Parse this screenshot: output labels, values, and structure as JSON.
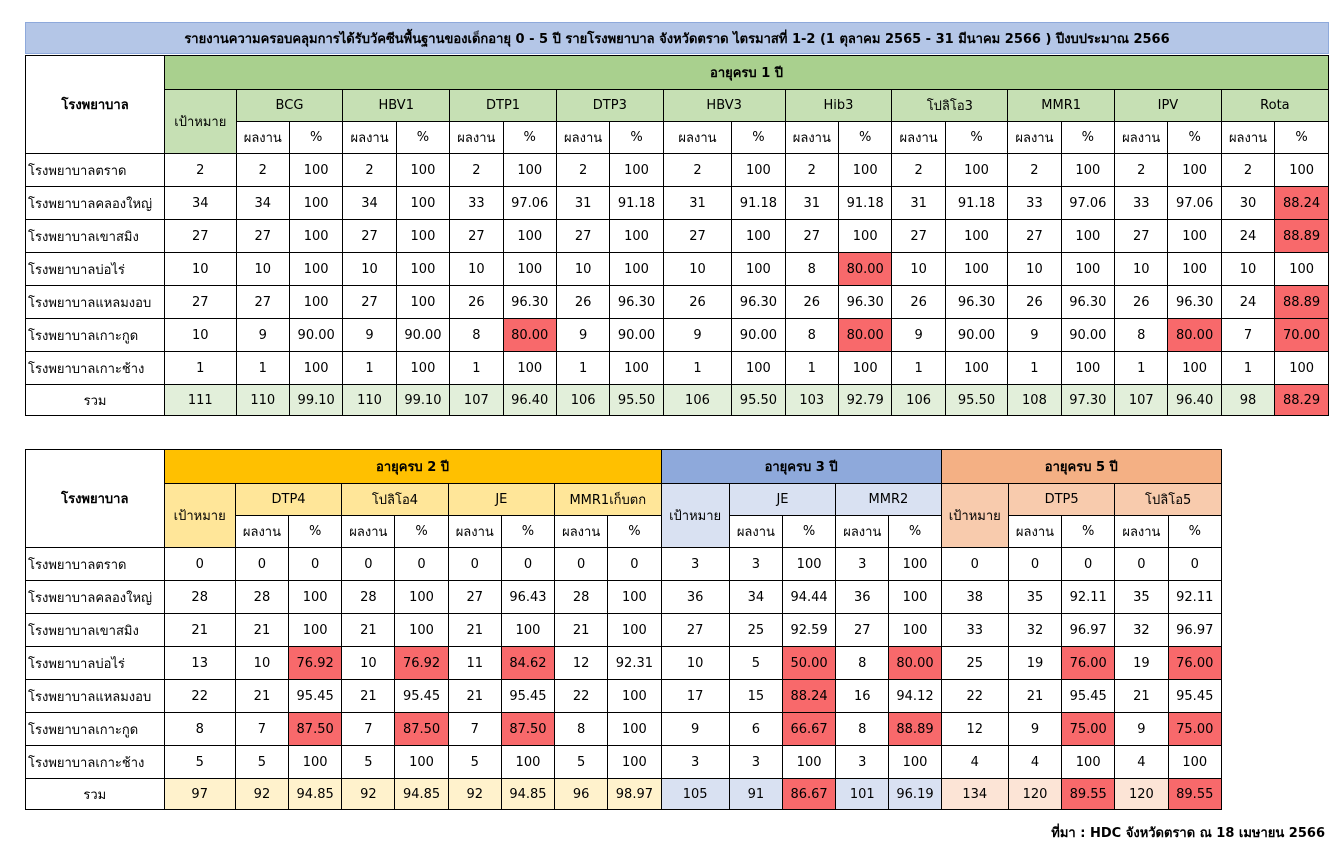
{
  "title": "รายงานความครอบคลุมการได้รับวัคซีนพื้นฐานของเด็กอายุ 0 - 5 ปี รายโรงพยาบาล จังหวัดตราด ไตรมาสที่ 1-2 (1 ตุลาคม 2565 - 31 มีนาคม 2566 ) ปีงบประมาณ 2566",
  "labels": {
    "hospital": "โรงพยาบาล",
    "target": "เป้าหมาย",
    "result": "ผลงาน",
    "percent": "%",
    "total": "รวม"
  },
  "table1": {
    "age_group": "อายุครบ 1 ปี",
    "vaccines": [
      "BCG",
      "HBV1",
      "DTP1",
      "DTP3",
      "HBV3",
      "Hib3",
      "โปลิโอ3",
      "MMR1",
      "IPV",
      "Rota"
    ],
    "rows": [
      {
        "hospital": "โรงพยาบาลตราด",
        "target": "2",
        "cells": [
          [
            "2",
            "100"
          ],
          [
            "2",
            "100"
          ],
          [
            "2",
            "100"
          ],
          [
            "2",
            "100"
          ],
          [
            "2",
            "100"
          ],
          [
            "2",
            "100"
          ],
          [
            "2",
            "100"
          ],
          [
            "2",
            "100"
          ],
          [
            "2",
            "100"
          ],
          [
            "2",
            "100"
          ]
        ]
      },
      {
        "hospital": "โรงพยาบาลคลองใหญ่",
        "target": "34",
        "cells": [
          [
            "34",
            "100"
          ],
          [
            "34",
            "100"
          ],
          [
            "33",
            "97.06"
          ],
          [
            "31",
            "91.18"
          ],
          [
            "31",
            "91.18"
          ],
          [
            "31",
            "91.18"
          ],
          [
            "31",
            "91.18"
          ],
          [
            "33",
            "97.06"
          ],
          [
            "33",
            "97.06"
          ],
          [
            "30",
            "88.24"
          ]
        ]
      },
      {
        "hospital": "โรงพยาบาลเขาสมิง",
        "target": "27",
        "cells": [
          [
            "27",
            "100"
          ],
          [
            "27",
            "100"
          ],
          [
            "27",
            "100"
          ],
          [
            "27",
            "100"
          ],
          [
            "27",
            "100"
          ],
          [
            "27",
            "100"
          ],
          [
            "27",
            "100"
          ],
          [
            "27",
            "100"
          ],
          [
            "27",
            "100"
          ],
          [
            "24",
            "88.89"
          ]
        ]
      },
      {
        "hospital": "โรงพยาบาลบ่อไร่",
        "target": "10",
        "cells": [
          [
            "10",
            "100"
          ],
          [
            "10",
            "100"
          ],
          [
            "10",
            "100"
          ],
          [
            "10",
            "100"
          ],
          [
            "10",
            "100"
          ],
          [
            "8",
            "80.00"
          ],
          [
            "10",
            "100"
          ],
          [
            "10",
            "100"
          ],
          [
            "10",
            "100"
          ],
          [
            "10",
            "100"
          ]
        ]
      },
      {
        "hospital": "โรงพยาบาลแหลมงอบ",
        "target": "27",
        "cells": [
          [
            "27",
            "100"
          ],
          [
            "27",
            "100"
          ],
          [
            "26",
            "96.30"
          ],
          [
            "26",
            "96.30"
          ],
          [
            "26",
            "96.30"
          ],
          [
            "26",
            "96.30"
          ],
          [
            "26",
            "96.30"
          ],
          [
            "26",
            "96.30"
          ],
          [
            "26",
            "96.30"
          ],
          [
            "24",
            "88.89"
          ]
        ]
      },
      {
        "hospital": "โรงพยาบาลเกาะกูด",
        "target": "10",
        "cells": [
          [
            "9",
            "90.00"
          ],
          [
            "9",
            "90.00"
          ],
          [
            "8",
            "80.00"
          ],
          [
            "9",
            "90.00"
          ],
          [
            "9",
            "90.00"
          ],
          [
            "8",
            "80.00"
          ],
          [
            "9",
            "90.00"
          ],
          [
            "9",
            "90.00"
          ],
          [
            "8",
            "80.00"
          ],
          [
            "7",
            "70.00"
          ]
        ]
      },
      {
        "hospital": "โรงพยาบาลเกาะช้าง",
        "target": "1",
        "cells": [
          [
            "1",
            "100"
          ],
          [
            "1",
            "100"
          ],
          [
            "1",
            "100"
          ],
          [
            "1",
            "100"
          ],
          [
            "1",
            "100"
          ],
          [
            "1",
            "100"
          ],
          [
            "1",
            "100"
          ],
          [
            "1",
            "100"
          ],
          [
            "1",
            "100"
          ],
          [
            "1",
            "100"
          ]
        ]
      }
    ],
    "total": {
      "target": "111",
      "cells": [
        [
          "110",
          "99.10"
        ],
        [
          "110",
          "99.10"
        ],
        [
          "107",
          "96.40"
        ],
        [
          "106",
          "95.50"
        ],
        [
          "106",
          "95.50"
        ],
        [
          "103",
          "92.79"
        ],
        [
          "106",
          "95.50"
        ],
        [
          "108",
          "97.30"
        ],
        [
          "107",
          "96.40"
        ],
        [
          "98",
          "88.29"
        ]
      ]
    }
  },
  "table2": {
    "groups": [
      {
        "age_group": "อายุครบ 2 ปี",
        "vaccines": [
          "DTP4",
          "โปลิโอ4",
          "JE",
          "MMR1เก็บตก"
        ]
      },
      {
        "age_group": "อายุครบ 3 ปี",
        "vaccines": [
          "JE",
          "MMR2"
        ]
      },
      {
        "age_group": "อายุครบ 5 ปี",
        "vaccines": [
          "DTP5",
          "โปลิโอ5"
        ]
      }
    ],
    "rows": [
      {
        "hospital": "โรงพยาบาลตราด",
        "g": [
          {
            "target": "0",
            "cells": [
              [
                "0",
                "0"
              ],
              [
                "0",
                "0"
              ],
              [
                "0",
                "0"
              ],
              [
                "0",
                "0"
              ]
            ]
          },
          {
            "target": "3",
            "cells": [
              [
                "3",
                "100"
              ],
              [
                "3",
                "100"
              ]
            ]
          },
          {
            "target": "0",
            "cells": [
              [
                "0",
                "0"
              ],
              [
                "0",
                "0"
              ]
            ]
          }
        ]
      },
      {
        "hospital": "โรงพยาบาลคลองใหญ่",
        "g": [
          {
            "target": "28",
            "cells": [
              [
                "28",
                "100"
              ],
              [
                "28",
                "100"
              ],
              [
                "27",
                "96.43"
              ],
              [
                "28",
                "100"
              ]
            ]
          },
          {
            "target": "36",
            "cells": [
              [
                "34",
                "94.44"
              ],
              [
                "36",
                "100"
              ]
            ]
          },
          {
            "target": "38",
            "cells": [
              [
                "35",
                "92.11"
              ],
              [
                "35",
                "92.11"
              ]
            ]
          }
        ]
      },
      {
        "hospital": "โรงพยาบาลเขาสมิง",
        "g": [
          {
            "target": "21",
            "cells": [
              [
                "21",
                "100"
              ],
              [
                "21",
                "100"
              ],
              [
                "21",
                "100"
              ],
              [
                "21",
                "100"
              ]
            ]
          },
          {
            "target": "27",
            "cells": [
              [
                "25",
                "92.59"
              ],
              [
                "27",
                "100"
              ]
            ]
          },
          {
            "target": "33",
            "cells": [
              [
                "32",
                "96.97"
              ],
              [
                "32",
                "96.97"
              ]
            ]
          }
        ]
      },
      {
        "hospital": "โรงพยาบาลบ่อไร่",
        "g": [
          {
            "target": "13",
            "cells": [
              [
                "10",
                "76.92"
              ],
              [
                "10",
                "76.92"
              ],
              [
                "11",
                "84.62"
              ],
              [
                "12",
                "92.31"
              ]
            ]
          },
          {
            "target": "10",
            "cells": [
              [
                "5",
                "50.00"
              ],
              [
                "8",
                "80.00"
              ]
            ]
          },
          {
            "target": "25",
            "cells": [
              [
                "19",
                "76.00"
              ],
              [
                "19",
                "76.00"
              ]
            ]
          }
        ]
      },
      {
        "hospital": "โรงพยาบาลแหลมงอบ",
        "g": [
          {
            "target": "22",
            "cells": [
              [
                "21",
                "95.45"
              ],
              [
                "21",
                "95.45"
              ],
              [
                "21",
                "95.45"
              ],
              [
                "22",
                "100"
              ]
            ]
          },
          {
            "target": "17",
            "cells": [
              [
                "15",
                "88.24"
              ],
              [
                "16",
                "94.12"
              ]
            ]
          },
          {
            "target": "22",
            "cells": [
              [
                "21",
                "95.45"
              ],
              [
                "21",
                "95.45"
              ]
            ]
          }
        ]
      },
      {
        "hospital": "โรงพยาบาลเกาะกูด",
        "g": [
          {
            "target": "8",
            "cells": [
              [
                "7",
                "87.50"
              ],
              [
                "7",
                "87.50"
              ],
              [
                "7",
                "87.50"
              ],
              [
                "8",
                "100"
              ]
            ]
          },
          {
            "target": "9",
            "cells": [
              [
                "6",
                "66.67"
              ],
              [
                "8",
                "88.89"
              ]
            ]
          },
          {
            "target": "12",
            "cells": [
              [
                "9",
                "75.00"
              ],
              [
                "9",
                "75.00"
              ]
            ]
          }
        ]
      },
      {
        "hospital": "โรงพยาบาลเกาะช้าง",
        "g": [
          {
            "target": "5",
            "cells": [
              [
                "5",
                "100"
              ],
              [
                "5",
                "100"
              ],
              [
                "5",
                "100"
              ],
              [
                "5",
                "100"
              ]
            ]
          },
          {
            "target": "3",
            "cells": [
              [
                "3",
                "100"
              ],
              [
                "3",
                "100"
              ]
            ]
          },
          {
            "target": "4",
            "cells": [
              [
                "4",
                "100"
              ],
              [
                "4",
                "100"
              ]
            ]
          }
        ]
      }
    ],
    "total": {
      "g": [
        {
          "target": "97",
          "cells": [
            [
              "92",
              "94.85"
            ],
            [
              "92",
              "94.85"
            ],
            [
              "92",
              "94.85"
            ],
            [
              "96",
              "98.97"
            ]
          ]
        },
        {
          "target": "105",
          "cells": [
            [
              "91",
              "86.67"
            ],
            [
              "101",
              "96.19"
            ]
          ]
        },
        {
          "target": "134",
          "cells": [
            [
              "120",
              "89.55"
            ],
            [
              "120",
              "89.55"
            ]
          ]
        }
      ]
    }
  },
  "highlight": {
    "below_target_color": "#f8696b"
  },
  "source": "ที่มา : HDC จังหวัดตราด ณ 18 เมษายน 2566"
}
